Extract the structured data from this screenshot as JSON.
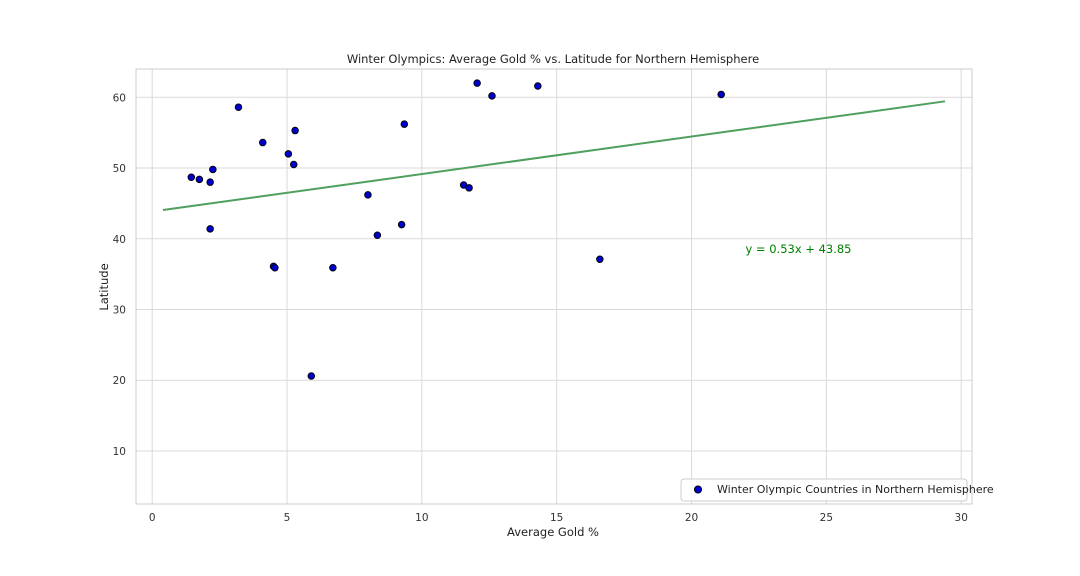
{
  "chart_data": {
    "type": "scatter",
    "title": "Winter Olympics: Average Gold % vs. Latitude for Northern Hemisphere",
    "xlabel": "Average Gold %",
    "ylabel": "Latitude",
    "xlim": [
      -0.6,
      30.4
    ],
    "ylim": [
      2.5,
      64
    ],
    "xticks": [
      0,
      5,
      10,
      15,
      20,
      25,
      30
    ],
    "yticks": [
      10,
      20,
      30,
      40,
      50,
      60
    ],
    "grid": true,
    "legend_position": "bottom-right",
    "series": [
      {
        "name": "Winter Olympic Countries in Northern Hemisphere",
        "color": "#0000cc",
        "edge_color": "#000000",
        "points": [
          {
            "x": 1.45,
            "y": 48.7
          },
          {
            "x": 1.75,
            "y": 48.4
          },
          {
            "x": 2.15,
            "y": 48.0
          },
          {
            "x": 2.25,
            "y": 49.8
          },
          {
            "x": 2.15,
            "y": 41.4
          },
          {
            "x": 3.2,
            "y": 58.6
          },
          {
            "x": 4.1,
            "y": 53.6
          },
          {
            "x": 4.5,
            "y": 36.1
          },
          {
            "x": 4.55,
            "y": 35.9
          },
          {
            "x": 5.05,
            "y": 52.0
          },
          {
            "x": 5.25,
            "y": 50.5
          },
          {
            "x": 5.3,
            "y": 55.3
          },
          {
            "x": 5.9,
            "y": 20.6
          },
          {
            "x": 6.7,
            "y": 35.9
          },
          {
            "x": 8.0,
            "y": 46.2
          },
          {
            "x": 8.35,
            "y": 40.5
          },
          {
            "x": 9.25,
            "y": 42.0
          },
          {
            "x": 9.35,
            "y": 56.2
          },
          {
            "x": 11.55,
            "y": 47.6
          },
          {
            "x": 11.75,
            "y": 47.2
          },
          {
            "x": 12.05,
            "y": 62.0
          },
          {
            "x": 12.6,
            "y": 60.2
          },
          {
            "x": 14.3,
            "y": 61.6
          },
          {
            "x": 16.6,
            "y": 37.1
          },
          {
            "x": 21.1,
            "y": 60.4
          }
        ]
      }
    ],
    "regression": {
      "slope": 0.53,
      "intercept": 43.85,
      "x_range": [
        0.4,
        29.4
      ],
      "color": "#4f9f5f"
    },
    "annotation": {
      "text": "y = 0.53x + 43.85",
      "x": 22.0,
      "y": 38.0,
      "color": "#008000"
    }
  }
}
